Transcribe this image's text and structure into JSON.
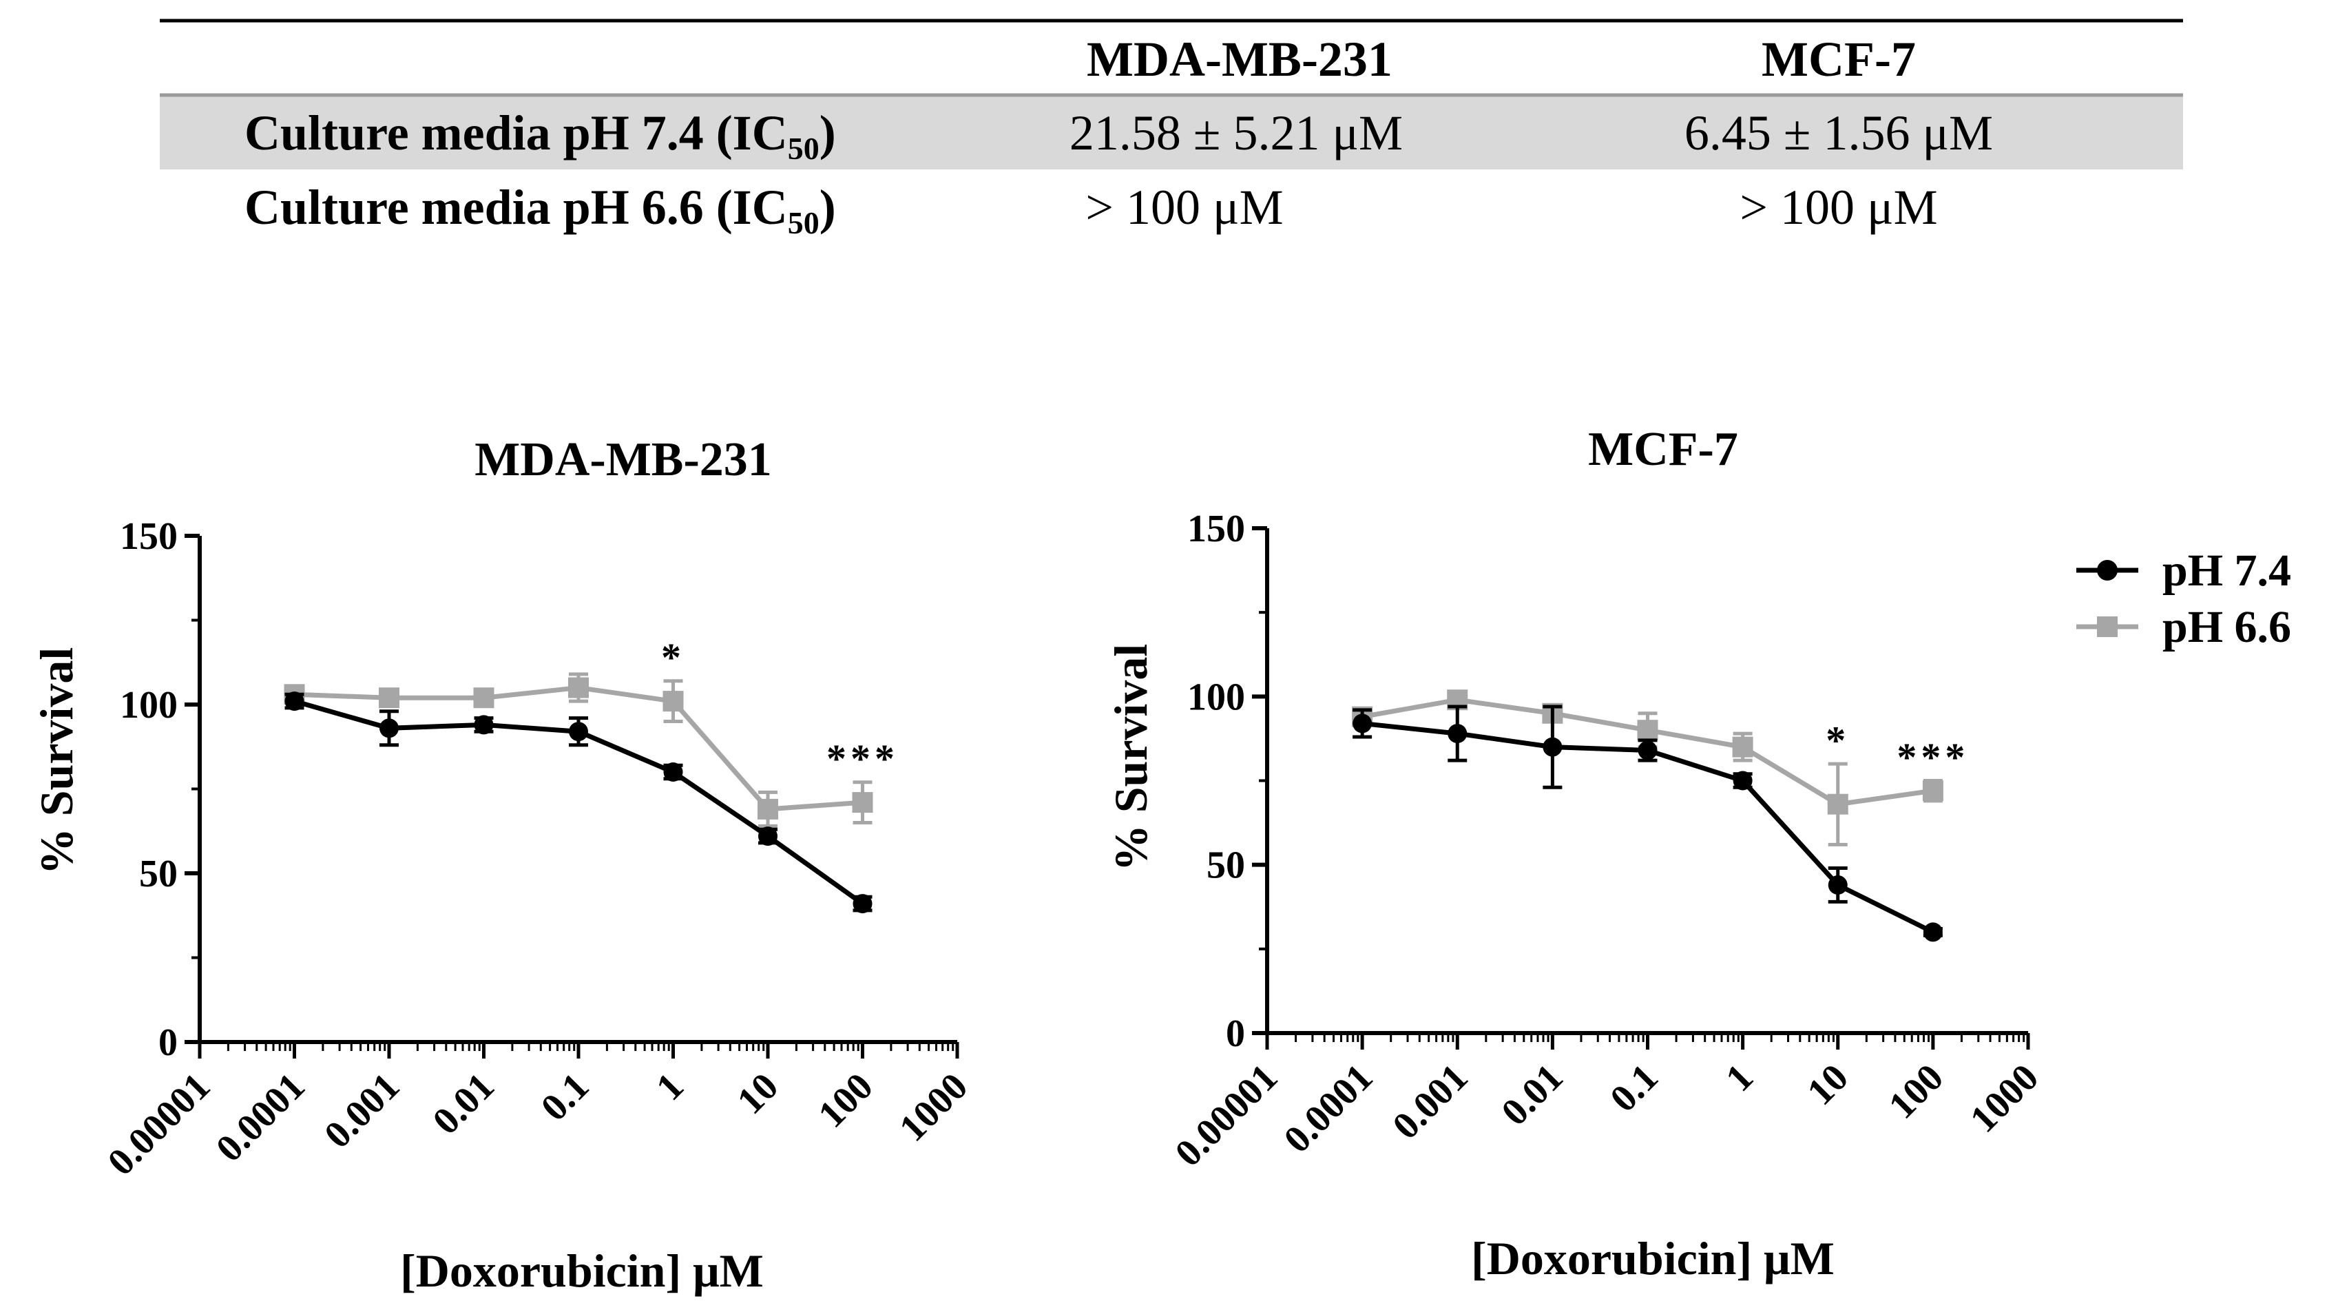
{
  "table": {
    "headers": [
      "",
      "MDA-MB-231",
      "MCF-7"
    ],
    "rows": [
      {
        "label_main": "Culture media pH 7.4 (IC",
        "label_sub": "50",
        "label_end": ")",
        "values": [
          "21.58 ± 5.21 μM",
          "6.45 ± 1.56 μM"
        ],
        "highlight": true
      },
      {
        "label_main": "Culture media pH 6.6 (IC",
        "label_sub": "50",
        "label_end": ")",
        "values": [
          "> 100 μM",
          "> 100 μM"
        ],
        "highlight": false
      }
    ],
    "highlight_color": "#d9d9d9"
  },
  "legend": {
    "entries": [
      {
        "label": "pH 7.4",
        "color": "#000000",
        "marker": "circle"
      },
      {
        "label": "pH 6.6",
        "color": "#a6a6a6",
        "marker": "square"
      }
    ]
  },
  "chart_data": [
    {
      "type": "line",
      "title": "MDA-MB-231",
      "xlabel": "[Doxorubicin] μM",
      "ylabel": "% Survival",
      "xscale": "log",
      "xlim": [
        1e-05,
        1000
      ],
      "ylim": [
        0,
        150
      ],
      "x_tick_labels": [
        "0.00001",
        "0.0001",
        "0.001",
        "0.01",
        "0.1",
        "1",
        "10",
        "100",
        "1000"
      ],
      "y_tick_labels": [
        "0",
        "50",
        "100",
        "150"
      ],
      "x": [
        0.0001,
        0.001,
        0.01,
        0.1,
        1,
        10,
        100
      ],
      "series": [
        {
          "name": "pH 7.4",
          "color": "#000000",
          "marker": "circle",
          "values": [
            101,
            93,
            94,
            92,
            80,
            61,
            41
          ],
          "errors": [
            2,
            5,
            2,
            4,
            2,
            2,
            2
          ]
        },
        {
          "name": "pH 6.6",
          "color": "#a6a6a6",
          "marker": "square",
          "values": [
            103,
            102,
            102,
            105,
            101,
            69,
            71
          ],
          "errors": [
            2,
            2,
            2,
            4,
            6,
            5,
            6
          ]
        }
      ],
      "annotations": [
        {
          "x": 1,
          "y": 110,
          "text": "*"
        },
        {
          "x": 100,
          "y": 80,
          "text": "***"
        }
      ]
    },
    {
      "type": "line",
      "title": "MCF-7",
      "xlabel": "[Doxorubicin] μM",
      "ylabel": "% Survival",
      "xscale": "log",
      "xlim": [
        1e-05,
        1000
      ],
      "ylim": [
        0,
        150
      ],
      "x_tick_labels": [
        "0.00001",
        "0.0001",
        "0.001",
        "0.01",
        "0.1",
        "1",
        "10",
        "100",
        "1000"
      ],
      "y_tick_labels": [
        "0",
        "50",
        "100",
        "150"
      ],
      "x": [
        0.0001,
        0.001,
        0.01,
        0.1,
        1,
        10,
        100
      ],
      "series": [
        {
          "name": "pH 7.4",
          "color": "#000000",
          "marker": "circle",
          "values": [
            92,
            89,
            85,
            84,
            75,
            44,
            30
          ],
          "errors": [
            4,
            8,
            12,
            3,
            2,
            5,
            1
          ]
        },
        {
          "name": "pH 6.6",
          "color": "#a6a6a6",
          "marker": "square",
          "values": [
            94,
            99,
            95,
            90,
            85,
            68,
            72
          ],
          "errors": [
            2,
            2,
            2,
            5,
            4,
            12,
            3
          ]
        }
      ],
      "annotations": [
        {
          "x": 10,
          "y": 83,
          "text": "*"
        },
        {
          "x": 100,
          "y": 78,
          "text": "***"
        }
      ]
    }
  ]
}
